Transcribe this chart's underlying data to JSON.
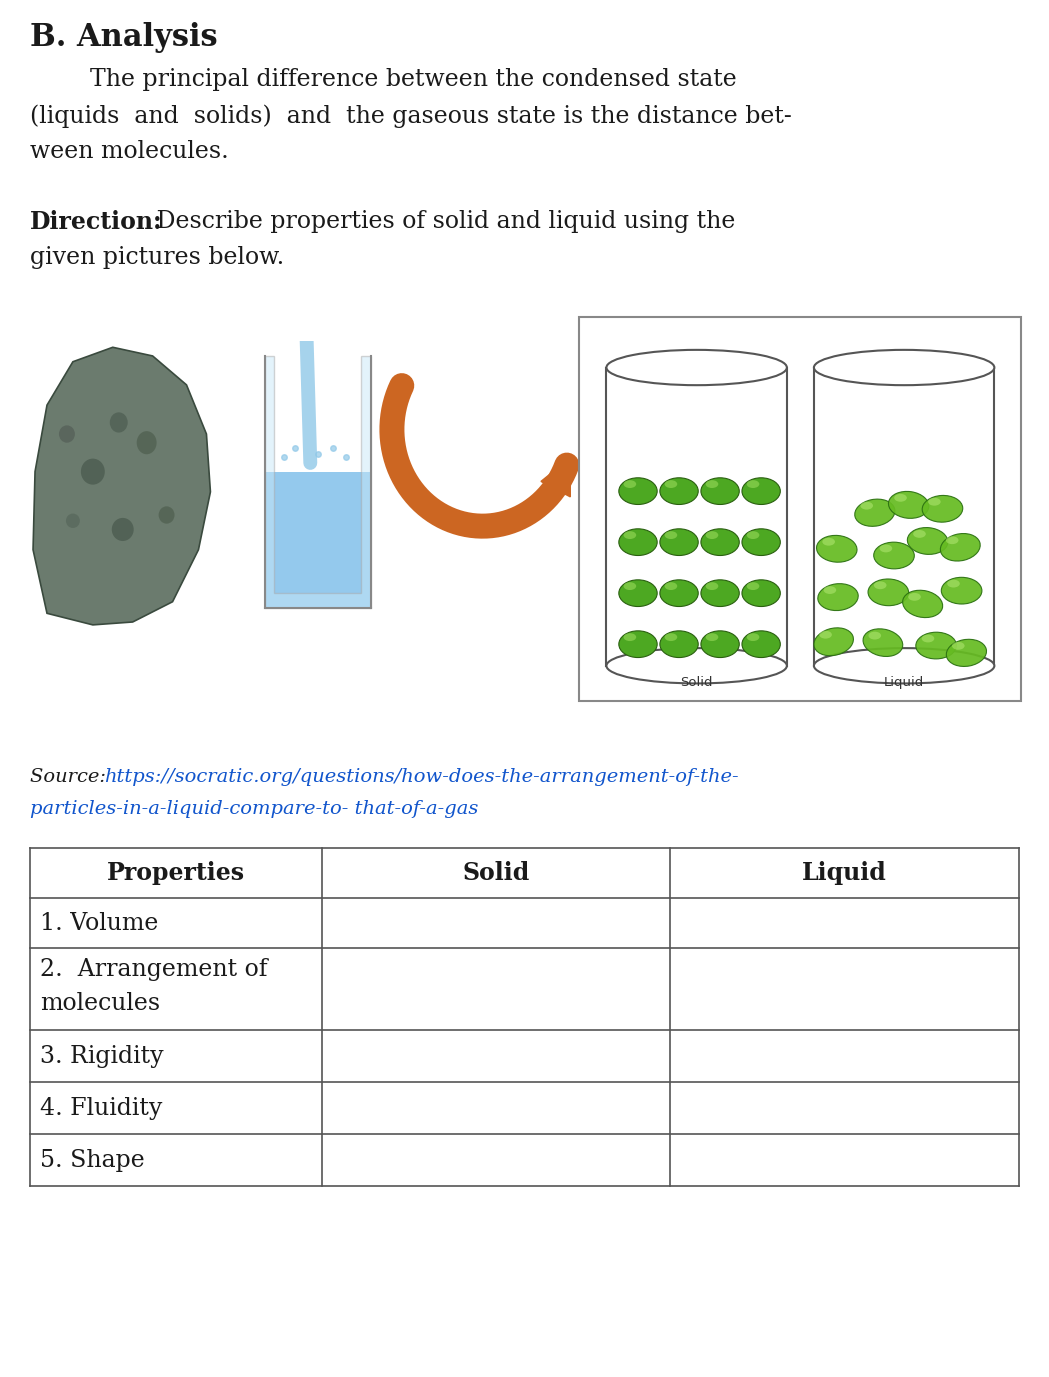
{
  "title": "B. Analysis",
  "paragraph_lines": [
    "        The principal difference between the condensed state",
    "(liquids  and  solids)  and  the gaseous state is the distance bet-",
    "ween molecules."
  ],
  "direction_bold": "Direction:",
  "direction_text": " Describe properties of solid and liquid using the",
  "direction_text2": "given pictures below.",
  "source_label": "Source: ",
  "source_url1": "https://socratic.org/questions/how-does-the-arrangement-of-the-",
  "source_url2": "particles-in-a-liquid-compare-to- that-of-a-gas",
  "table_headers": [
    "Properties",
    "Solid",
    "Liquid"
  ],
  "table_row_labels": [
    "1. Volume",
    "2.  Arrangement of\nmolecules",
    "3. Rigidity",
    "4. Fluidity",
    "5. Shape"
  ],
  "background_color": "#ffffff",
  "text_color": "#1a1a1a",
  "link_color": "#1155CC",
  "table_line_color": "#555555",
  "arrow_color": "#cc6622",
  "solid_molecule_color": "#4da822",
  "liquid_molecule_color": "#66bb22",
  "rock_body_color": "#6b7b6e",
  "rock_edge_color": "#3a4a3e",
  "rock_bg_color": "#c8c0a0",
  "water_bg_color": "#b8d8f0",
  "water_fill_color": "#70b8e8"
}
